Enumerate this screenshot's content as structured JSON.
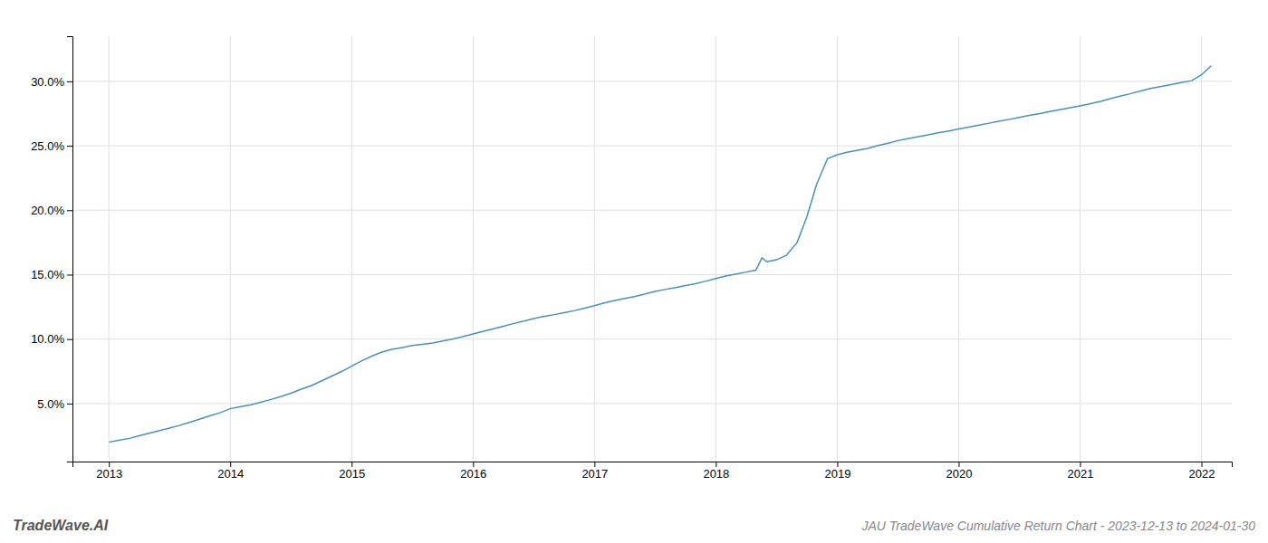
{
  "chart_data": {
    "type": "line",
    "title": "JAU TradeWave Cumulative Return Chart - 2023-12-13 to 2024-01-30",
    "annotations": [
      "TradeWave.AI"
    ],
    "color": "#4a90b8",
    "grid": true,
    "x": [
      2013.0,
      2013.08,
      2013.17,
      2013.25,
      2013.33,
      2013.42,
      2013.5,
      2013.58,
      2013.67,
      2013.75,
      2013.83,
      2013.92,
      2014.0,
      2014.08,
      2014.17,
      2014.25,
      2014.33,
      2014.42,
      2014.5,
      2014.58,
      2014.67,
      2014.75,
      2014.83,
      2014.92,
      2015.0,
      2015.08,
      2015.17,
      2015.25,
      2015.33,
      2015.42,
      2015.5,
      2015.58,
      2015.67,
      2015.75,
      2015.83,
      2015.92,
      2016.0,
      2016.08,
      2016.17,
      2016.25,
      2016.33,
      2016.42,
      2016.5,
      2016.58,
      2016.67,
      2016.75,
      2016.83,
      2016.92,
      2017.0,
      2017.08,
      2017.17,
      2017.25,
      2017.33,
      2017.42,
      2017.5,
      2017.58,
      2017.67,
      2017.75,
      2017.83,
      2017.92,
      2018.0,
      2018.08,
      2018.17,
      2018.25,
      2018.33,
      2018.38,
      2018.42,
      2018.5,
      2018.58,
      2018.67,
      2018.75,
      2018.83,
      2018.92,
      2019.0,
      2019.08,
      2019.17,
      2019.25,
      2019.33,
      2019.42,
      2019.5,
      2019.58,
      2019.67,
      2019.75,
      2019.83,
      2019.92,
      2020.0,
      2020.08,
      2020.17,
      2020.25,
      2020.33,
      2020.42,
      2020.5,
      2020.58,
      2020.67,
      2020.75,
      2020.83,
      2020.92,
      2021.0,
      2021.08,
      2021.17,
      2021.25,
      2021.33,
      2021.42,
      2021.5,
      2021.58,
      2021.67,
      2021.75,
      2021.83,
      2021.92,
      2022.0,
      2022.08
    ],
    "values": [
      2.0,
      2.15,
      2.3,
      2.5,
      2.7,
      2.9,
      3.1,
      3.3,
      3.55,
      3.8,
      4.05,
      4.3,
      4.6,
      4.75,
      4.9,
      5.1,
      5.3,
      5.55,
      5.8,
      6.1,
      6.4,
      6.75,
      7.1,
      7.5,
      7.9,
      8.3,
      8.7,
      9.0,
      9.2,
      9.35,
      9.5,
      9.6,
      9.7,
      9.85,
      10.0,
      10.2,
      10.4,
      10.6,
      10.8,
      11.0,
      11.2,
      11.4,
      11.6,
      11.75,
      11.9,
      12.05,
      12.2,
      12.4,
      12.6,
      12.8,
      13.0,
      13.15,
      13.3,
      13.5,
      13.7,
      13.85,
      14.0,
      14.15,
      14.3,
      14.5,
      14.7,
      14.9,
      15.05,
      15.2,
      15.35,
      16.3,
      16.0,
      16.15,
      16.5,
      17.5,
      19.5,
      22.0,
      24.0,
      24.3,
      24.5,
      24.65,
      24.8,
      25.0,
      25.2,
      25.4,
      25.55,
      25.7,
      25.85,
      26.0,
      26.15,
      26.3,
      26.45,
      26.6,
      26.75,
      26.9,
      27.05,
      27.2,
      27.35,
      27.5,
      27.65,
      27.8,
      27.95,
      28.1,
      28.25,
      28.45,
      28.65,
      28.85,
      29.05,
      29.25,
      29.45,
      29.6,
      29.75,
      29.9,
      30.05,
      30.5,
      31.2
    ],
    "xlim": [
      2012.7,
      2022.25
    ],
    "ylim": [
      0.5,
      33.5
    ],
    "xticks": [
      2013,
      2014,
      2015,
      2016,
      2017,
      2018,
      2019,
      2020,
      2021,
      2022
    ],
    "yticks": [
      {
        "value": 5.0,
        "label": "5.0%"
      },
      {
        "value": 10.0,
        "label": "10.0%"
      },
      {
        "value": 15.0,
        "label": "15.0%"
      },
      {
        "value": 20.0,
        "label": "20.0%"
      },
      {
        "value": 25.0,
        "label": "25.0%"
      },
      {
        "value": 30.0,
        "label": "30.0%"
      }
    ]
  }
}
